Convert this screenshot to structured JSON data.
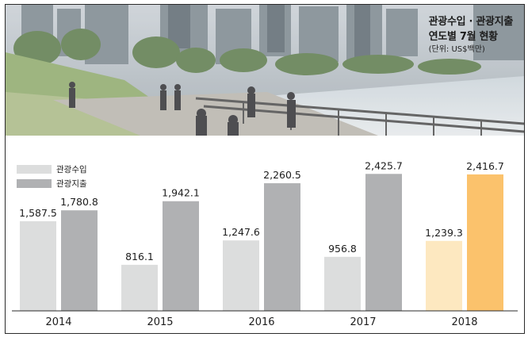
{
  "title": {
    "line1": "관광수입 · 관광지출",
    "line2": "연도별 7월 현황",
    "unit": "(단위: US$백만)"
  },
  "colors": {
    "income": "#dcdddd",
    "expense": "#b0b1b3",
    "income_2018": "#fde8c0",
    "expense_2018": "#fbc26c"
  },
  "chart_data": {
    "type": "bar",
    "categories": [
      "2014",
      "2015",
      "2016",
      "2017",
      "2018"
    ],
    "series": [
      {
        "name": "관광수입",
        "values": [
          1587.5,
          816.1,
          1247.6,
          956.8,
          1239.3
        ],
        "labels": [
          "1,587.5",
          "816.1",
          "1,247.6",
          "956.8",
          "1,239.3"
        ]
      },
      {
        "name": "관광지출",
        "values": [
          1780.8,
          1942.1,
          2260.5,
          2425.7,
          2416.7
        ],
        "labels": [
          "1,780.8",
          "1,942.1",
          "2,260.5",
          "2,425.7",
          "2,416.7"
        ]
      }
    ],
    "ylim": [
      0,
      2500
    ],
    "legend": "top-left",
    "grid": false
  }
}
